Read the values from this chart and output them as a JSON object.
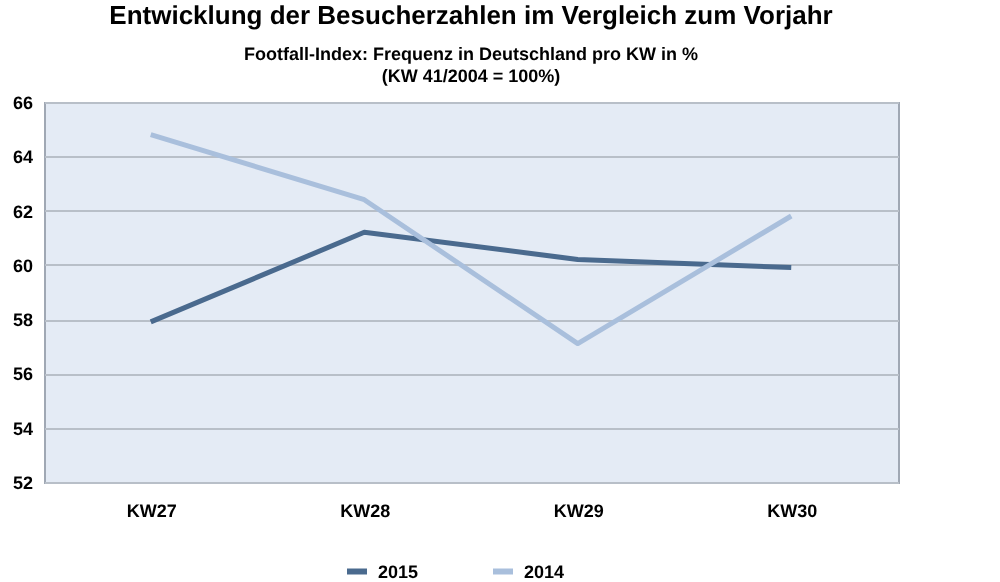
{
  "chart_data": {
    "type": "line",
    "title": "Entwicklung der Besucherzahlen im Vergleich zum Vorjahr",
    "subtitle": [
      "Footfall-Index: Frequenz in Deutschland pro KW in %",
      "(KW 41/2004 = 100%)"
    ],
    "categories": [
      "KW27",
      "KW28",
      "KW29",
      "KW30"
    ],
    "series": [
      {
        "name": "2015",
        "color": "#4a6a8e",
        "values": [
          57.9,
          61.2,
          60.2,
          59.9
        ]
      },
      {
        "name": "2014",
        "color": "#a9bfdc",
        "values": [
          64.8,
          62.4,
          57.1,
          61.8
        ]
      }
    ],
    "ylim": [
      52,
      66
    ],
    "yticks": [
      52,
      54,
      56,
      58,
      60,
      62,
      64,
      66
    ],
    "grid": "y",
    "legend": "bottom",
    "marker": "none",
    "line_style": "solid"
  }
}
